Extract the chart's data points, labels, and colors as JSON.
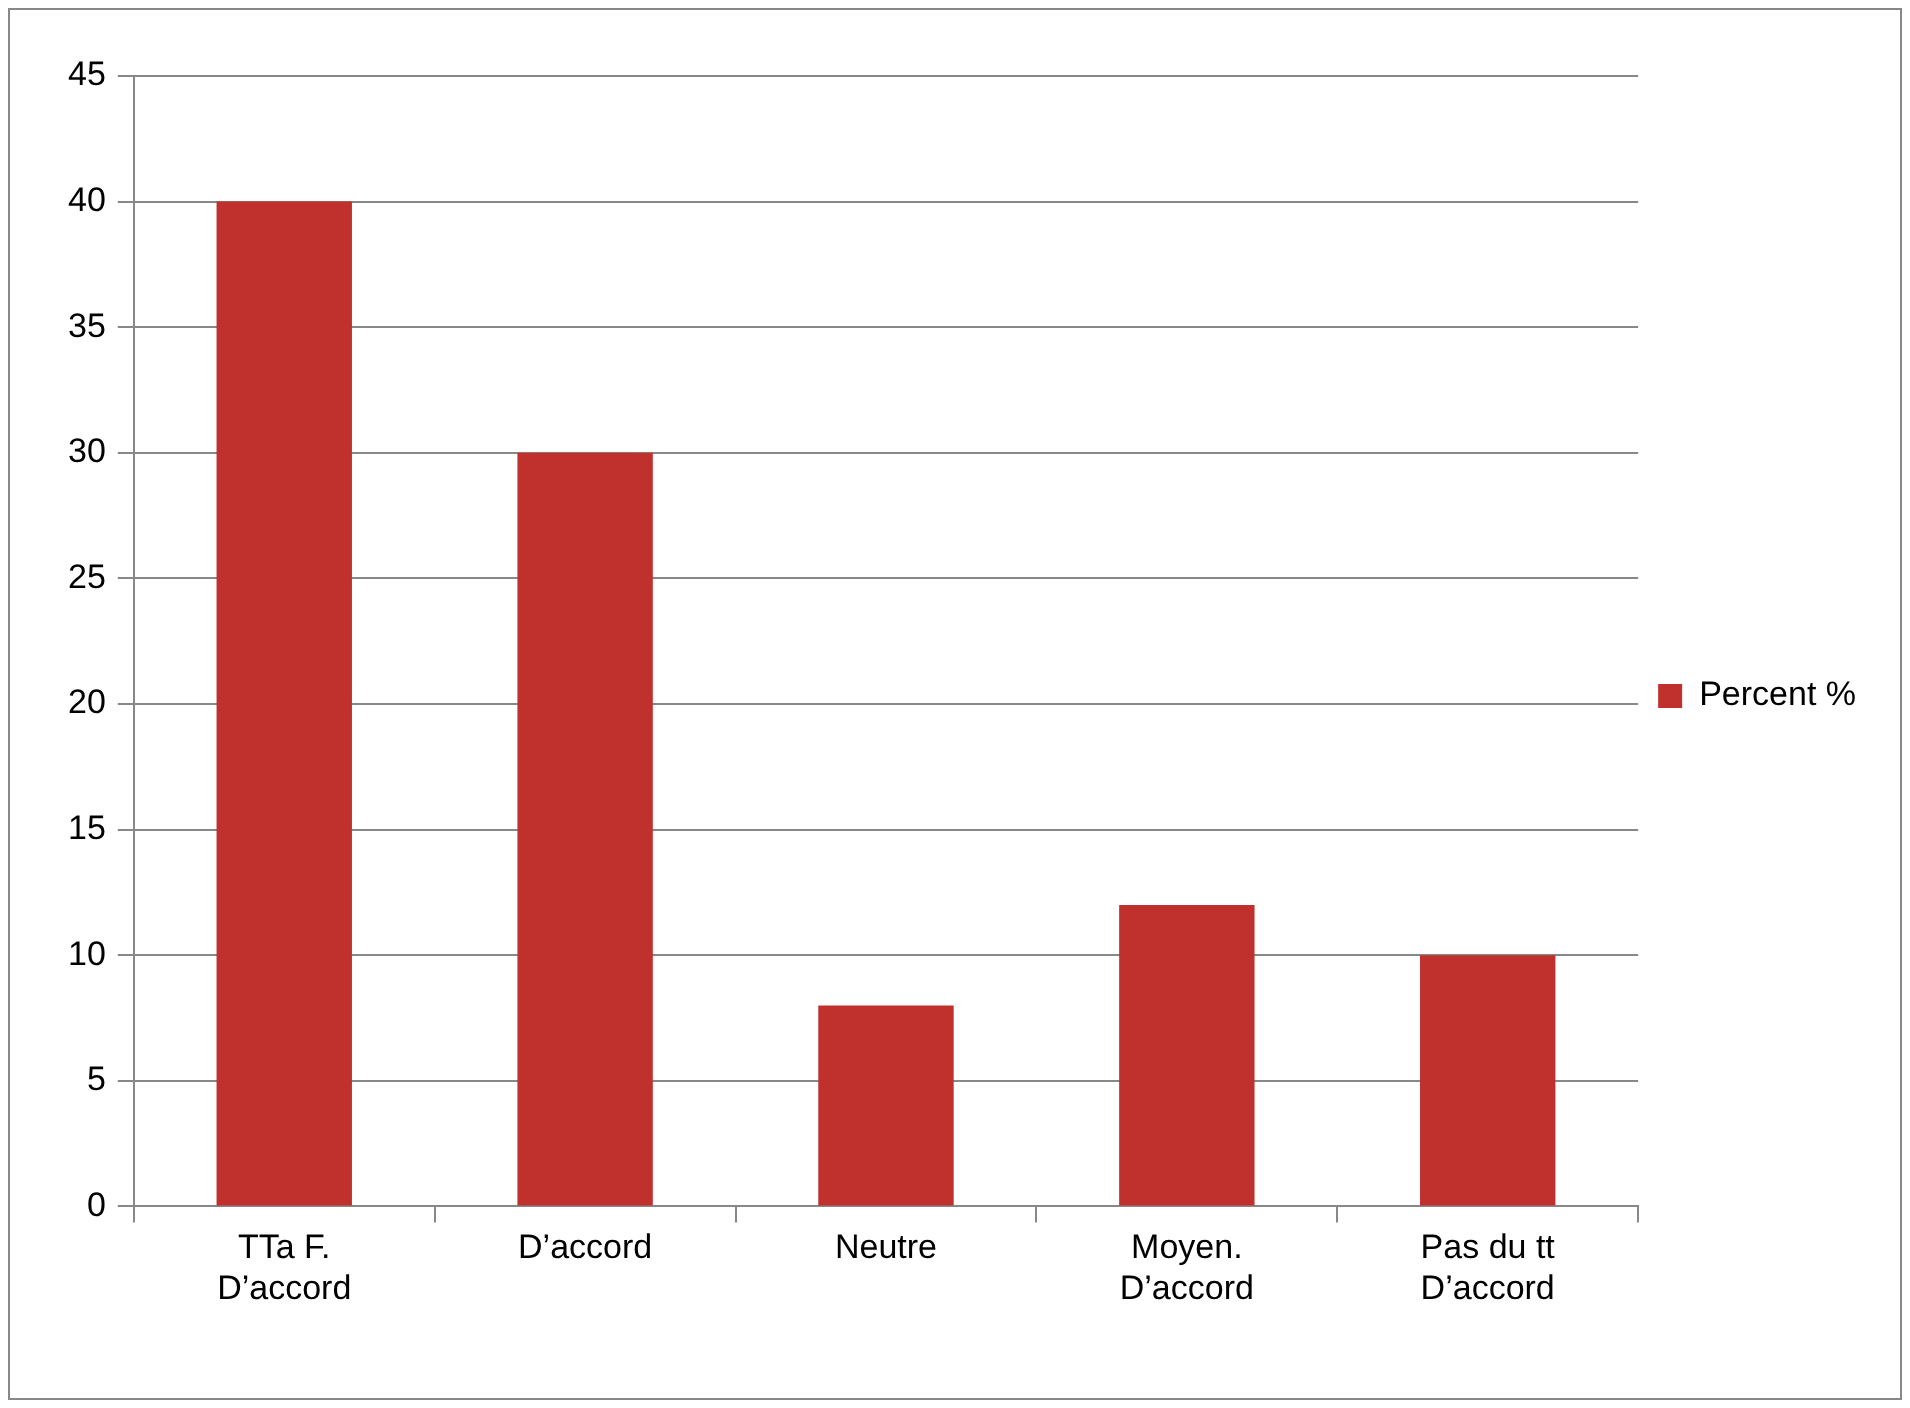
{
  "chart_data": {
    "type": "bar",
    "categories": [
      "TTa F. D’accord",
      "D’accord",
      "Neutre",
      "Moyen. D’accord",
      "Pas du tt D’accord"
    ],
    "series": [
      {
        "name": "Percent %",
        "color": "#c0302c",
        "values": [
          40,
          30,
          8,
          12,
          10
        ]
      }
    ],
    "ylim": [
      0,
      45
    ],
    "yticks": [
      0,
      5,
      10,
      15,
      20,
      25,
      30,
      35,
      40,
      45
    ],
    "grid": "y",
    "legend": "right"
  }
}
